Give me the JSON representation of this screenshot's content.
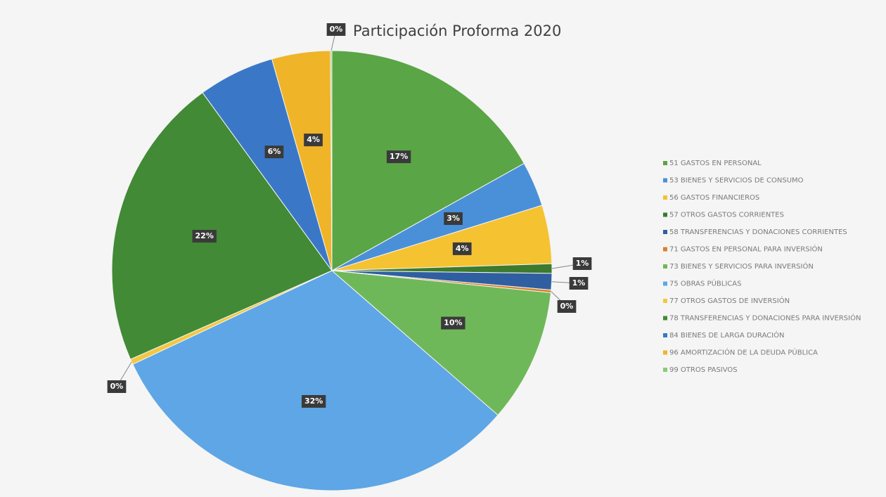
{
  "chart_data": {
    "type": "pie",
    "title": "Participación Proforma 2020",
    "categories": [
      "51 GASTOS EN PERSONAL",
      "53 BIENES Y SERVICIOS DE CONSUMO",
      "56 GASTOS FINANCIEROS",
      "57 OTROS GASTOS CORRIENTES",
      "58 TRANSFERENCIAS Y DONACIONES CORRIENTES",
      "71 GASTOS EN PERSONAL PARA INVERSIÓN",
      "73 BIENES Y SERVICIOS PARA INVERSIÓN",
      "75 OBRAS PÚBLICAS",
      "77 OTROS GASTOS DE INVERSIÓN",
      "78 TRANSFERENCIAS Y DONACIONES PARA INVERSIÓN",
      "84 BIENES DE LARGA DURACIÓN",
      "96 AMORTIZACIÓN DE LA DEUDA PÚBLICA",
      "99 OTROS PASIVOS"
    ],
    "values": [
      16.9,
      3.3,
      4.3,
      0.7,
      1.2,
      0.2,
      9.8,
      31.6,
      0.4,
      21.6,
      5.6,
      4.3,
      0.1
    ],
    "value_labels": [
      "17%",
      "3%",
      "4%",
      "1%",
      "1%",
      "0%",
      "10%",
      "32%",
      "0%",
      "22%",
      "6%",
      "4%",
      "0%"
    ],
    "colors": [
      "#5aa545",
      "#4a90d9",
      "#f5c232",
      "#3d7a2e",
      "#2f5fa0",
      "#d9822b",
      "#6fb85a",
      "#5ea6e6",
      "#f3c740",
      "#428a35",
      "#3a78c7",
      "#f0b429",
      "#8cc97a"
    ],
    "legend": "right"
  }
}
